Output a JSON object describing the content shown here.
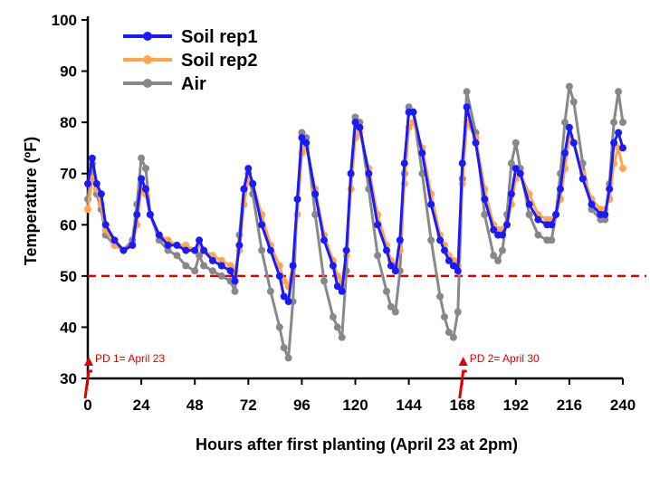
{
  "chart_data": {
    "type": "line",
    "xlabel": "Hours after first planting (April 23 at 2pm)",
    "ylabel": "Temperature (ºF)",
    "xlim": [
      0,
      240
    ],
    "ylim": [
      30,
      100
    ],
    "x_ticks": [
      0,
      24,
      48,
      72,
      96,
      120,
      144,
      168,
      192,
      216,
      240
    ],
    "y_ticks": [
      30,
      40,
      50,
      60,
      70,
      80,
      90,
      100
    ],
    "grid": false,
    "legend_position": "top-left",
    "reference_line": {
      "y": 50,
      "color": "#e00000",
      "style": "dashed"
    },
    "annotations": [
      {
        "text": "PD 1= April 23",
        "x": 0
      },
      {
        "text": "PD 2= April 30",
        "x": 168
      }
    ],
    "series": [
      {
        "name": "Soil rep1",
        "color": "#1a1aff",
        "x": [
          0,
          2,
          4,
          6,
          8,
          12,
          16,
          20,
          22,
          24,
          26,
          28,
          32,
          36,
          40,
          44,
          48,
          50,
          52,
          56,
          60,
          64,
          66,
          68,
          70,
          72,
          74,
          78,
          82,
          86,
          88,
          90,
          92,
          94,
          96,
          98,
          102,
          106,
          110,
          112,
          114,
          116,
          118,
          120,
          122,
          126,
          130,
          134,
          136,
          138,
          140,
          142,
          144,
          146,
          150,
          154,
          158,
          160,
          162,
          164,
          166,
          168,
          170,
          174,
          178,
          182,
          184,
          186,
          188,
          190,
          192,
          194,
          198,
          202,
          206,
          208,
          210,
          212,
          214,
          216,
          218,
          222,
          226,
          230,
          232,
          234,
          236,
          238,
          240
        ],
        "y": [
          68,
          73,
          68,
          66,
          60,
          57,
          55,
          56,
          62,
          69,
          67,
          62,
          58,
          56,
          56,
          55,
          55,
          57,
          55,
          53,
          52,
          51,
          49,
          56,
          67,
          71,
          68,
          60,
          55,
          50,
          46,
          45,
          52,
          65,
          77,
          76,
          66,
          57,
          52,
          48,
          47,
          55,
          70,
          80,
          79,
          70,
          60,
          55,
          52,
          51,
          57,
          72,
          82,
          82,
          74,
          64,
          57,
          55,
          53,
          52,
          51,
          72,
          83,
          76,
          65,
          59,
          58,
          58,
          60,
          66,
          71,
          70,
          64,
          61,
          60,
          60,
          62,
          67,
          74,
          79,
          76,
          69,
          64,
          62,
          62,
          67,
          76,
          78,
          75
        ]
      },
      {
        "name": "Soil rep2",
        "color": "#ffa64d",
        "x": [
          0,
          2,
          4,
          6,
          8,
          12,
          16,
          20,
          22,
          24,
          26,
          28,
          32,
          36,
          40,
          44,
          48,
          50,
          52,
          56,
          60,
          64,
          66,
          68,
          70,
          72,
          74,
          78,
          82,
          86,
          88,
          90,
          92,
          94,
          96,
          98,
          102,
          106,
          110,
          112,
          114,
          116,
          118,
          120,
          122,
          126,
          130,
          134,
          136,
          138,
          140,
          142,
          144,
          146,
          150,
          154,
          158,
          160,
          162,
          164,
          166,
          168,
          170,
          174,
          178,
          182,
          184,
          186,
          188,
          190,
          192,
          194,
          198,
          202,
          206,
          208,
          210,
          212,
          214,
          216,
          218,
          222,
          226,
          230,
          232,
          234,
          236,
          238,
          240
        ],
        "y": [
          63,
          69,
          67,
          64,
          59,
          56,
          55,
          56,
          60,
          67,
          66,
          62,
          58,
          57,
          56,
          56,
          55,
          56,
          55,
          54,
          53,
          52,
          51,
          55,
          64,
          69,
          68,
          62,
          56,
          52,
          49,
          48,
          52,
          62,
          74,
          75,
          67,
          58,
          53,
          50,
          49,
          54,
          67,
          77,
          78,
          71,
          62,
          56,
          53,
          52,
          55,
          68,
          79,
          80,
          75,
          66,
          58,
          56,
          54,
          53,
          52,
          68,
          80,
          77,
          67,
          60,
          59,
          59,
          60,
          64,
          69,
          70,
          66,
          62,
          61,
          61,
          62,
          65,
          71,
          77,
          76,
          70,
          65,
          63,
          63,
          65,
          72,
          75,
          71
        ]
      },
      {
        "name": "Air",
        "color": "#888888",
        "x": [
          0,
          2,
          4,
          6,
          8,
          12,
          16,
          20,
          22,
          24,
          26,
          28,
          32,
          36,
          40,
          44,
          48,
          50,
          52,
          56,
          60,
          64,
          66,
          68,
          70,
          72,
          74,
          78,
          82,
          86,
          88,
          90,
          92,
          94,
          96,
          98,
          102,
          106,
          110,
          112,
          114,
          116,
          118,
          120,
          122,
          126,
          130,
          134,
          136,
          138,
          140,
          142,
          144,
          146,
          150,
          154,
          158,
          160,
          162,
          164,
          166,
          168,
          170,
          174,
          178,
          182,
          184,
          186,
          188,
          190,
          192,
          194,
          198,
          202,
          206,
          208,
          210,
          212,
          214,
          216,
          218,
          222,
          226,
          230,
          232,
          234,
          236,
          238,
          240
        ],
        "y": [
          65,
          72,
          66,
          63,
          58,
          56,
          55,
          57,
          64,
          73,
          71,
          62,
          57,
          55,
          54,
          52,
          51,
          54,
          52,
          51,
          50,
          49,
          47,
          58,
          67,
          70,
          66,
          55,
          47,
          40,
          36,
          34,
          45,
          65,
          78,
          77,
          62,
          49,
          42,
          40,
          38,
          51,
          70,
          81,
          80,
          67,
          54,
          47,
          44,
          43,
          51,
          70,
          83,
          82,
          70,
          57,
          46,
          42,
          39,
          38,
          43,
          69,
          86,
          78,
          62,
          54,
          53,
          55,
          62,
          72,
          76,
          71,
          62,
          58,
          57,
          57,
          62,
          70,
          80,
          87,
          84,
          72,
          63,
          61,
          61,
          68,
          80,
          86,
          80
        ]
      }
    ]
  }
}
